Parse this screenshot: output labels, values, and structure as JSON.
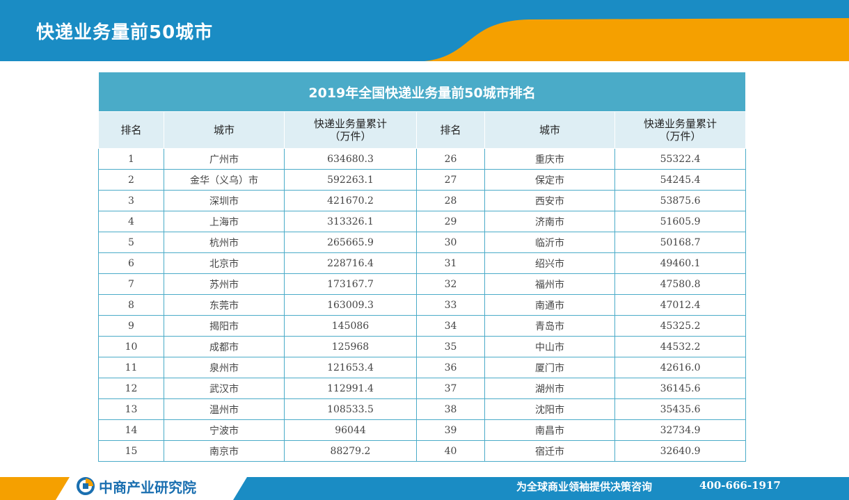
{
  "header": {
    "title": "快递业务量前50城市"
  },
  "table": {
    "caption": "2019年全国快递业务量前50城市排名",
    "headers": {
      "rank": "排名",
      "city": "城市",
      "volume_line1": "快递业务量累计",
      "volume_line2": "（万件）"
    },
    "left_rows": [
      {
        "rank": "1",
        "city": "广州市",
        "volume": "634680.3"
      },
      {
        "rank": "2",
        "city": "金华（义乌）市",
        "volume": "592263.1"
      },
      {
        "rank": "3",
        "city": "深圳市",
        "volume": "421670.2"
      },
      {
        "rank": "4",
        "city": "上海市",
        "volume": "313326.1"
      },
      {
        "rank": "5",
        "city": "杭州市",
        "volume": "265665.9"
      },
      {
        "rank": "6",
        "city": "北京市",
        "volume": "228716.4"
      },
      {
        "rank": "7",
        "city": "苏州市",
        "volume": "173167.7"
      },
      {
        "rank": "8",
        "city": "东莞市",
        "volume": "163009.3"
      },
      {
        "rank": "9",
        "city": "揭阳市",
        "volume": "145086"
      },
      {
        "rank": "10",
        "city": "成都市",
        "volume": "125968"
      },
      {
        "rank": "11",
        "city": "泉州市",
        "volume": "121653.4"
      },
      {
        "rank": "12",
        "city": "武汉市",
        "volume": "112991.4"
      },
      {
        "rank": "13",
        "city": "温州市",
        "volume": "108533.5"
      },
      {
        "rank": "14",
        "city": "宁波市",
        "volume": "96044"
      },
      {
        "rank": "15",
        "city": "南京市",
        "volume": "88279.2"
      }
    ],
    "right_rows": [
      {
        "rank": "26",
        "city": "重庆市",
        "volume": "55322.4"
      },
      {
        "rank": "27",
        "city": "保定市",
        "volume": "54245.4"
      },
      {
        "rank": "28",
        "city": "西安市",
        "volume": "53875.6"
      },
      {
        "rank": "29",
        "city": "济南市",
        "volume": "51605.9"
      },
      {
        "rank": "30",
        "city": "临沂市",
        "volume": "50168.7"
      },
      {
        "rank": "31",
        "city": "绍兴市",
        "volume": "49460.1"
      },
      {
        "rank": "32",
        "city": "福州市",
        "volume": "47580.8"
      },
      {
        "rank": "33",
        "city": "南通市",
        "volume": "47012.4"
      },
      {
        "rank": "34",
        "city": "青岛市",
        "volume": "45325.2"
      },
      {
        "rank": "35",
        "city": "中山市",
        "volume": "44532.2"
      },
      {
        "rank": "36",
        "city": "厦门市",
        "volume": "42616.0"
      },
      {
        "rank": "37",
        "city": "湖州市",
        "volume": "36145.6"
      },
      {
        "rank": "38",
        "city": "沈阳市",
        "volume": "35435.6"
      },
      {
        "rank": "39",
        "city": "南昌市",
        "volume": "32734.9"
      },
      {
        "rank": "40",
        "city": "宿迁市",
        "volume": "32640.9"
      }
    ]
  },
  "footer": {
    "logo_text": "中商产业研究院",
    "slogan": "为全球商业领袖提供决策咨询",
    "phone": "400-666-1917"
  },
  "colors": {
    "header_blue": "#1a8cc4",
    "accent_orange": "#f5a000",
    "table_head": "#4aabc8",
    "subhead": "#deeef4"
  }
}
